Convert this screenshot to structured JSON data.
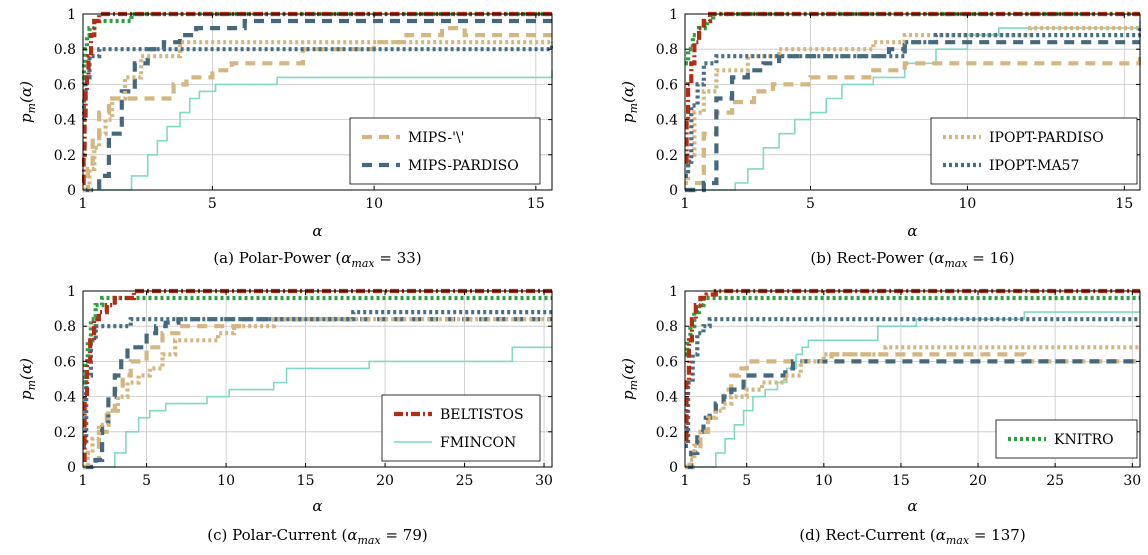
{
  "colors": {
    "BELTISTOS": "#b22d14",
    "KNITRO": "#2ea043",
    "IPOPT-MA57": "#476f84",
    "MIPS-PARDISO": "#46687c",
    "IPOPT-PARDISO": "#d3b680",
    "MIPS-backslash": "#d3b680",
    "FMINCON": "#7fd9c5"
  },
  "chart_data": [
    {
      "id": "a",
      "type": "line",
      "step": true,
      "caption": {
        "prefix": "(a)  Polar-Power (",
        "alpha": "α",
        "sub": "max",
        "suffix": " = 33)"
      },
      "xlabel": "α",
      "ylabel": {
        "main": "p",
        "sub": "m",
        "arg": "(α)"
      },
      "xlim": [
        1,
        15.5
      ],
      "ylim": [
        0,
        1
      ],
      "xticks": [
        1,
        5,
        10,
        15
      ],
      "yticks": [
        0,
        0.2,
        0.4,
        0.6,
        0.8,
        1
      ],
      "grid": true,
      "legend": {
        "position": "bottom-right",
        "entries": [
          "MIPS-'\\'",
          "MIPS-PARDISO"
        ]
      },
      "series": [
        {
          "name": "BELTISTOS",
          "style": "dashdot",
          "x": [
            1.0,
            1.02,
            1.05,
            1.08,
            1.12,
            1.17,
            1.25,
            1.35,
            1.5,
            15.5
          ],
          "y": [
            0.04,
            0.2,
            0.4,
            0.56,
            0.64,
            0.76,
            0.88,
            0.96,
            1.0,
            1.0
          ]
        },
        {
          "name": "KNITRO",
          "style": "dotted",
          "x": [
            1.0,
            1.03,
            1.07,
            1.12,
            1.2,
            1.35,
            2.0,
            2.5,
            15.5
          ],
          "y": [
            0.6,
            0.72,
            0.8,
            0.88,
            0.92,
            0.96,
            0.96,
            1.0,
            1.0
          ]
        },
        {
          "name": "IPOPT-MA57",
          "style": "dotted",
          "x": [
            1.0,
            1.03,
            1.08,
            1.2,
            1.5,
            15.5
          ],
          "y": [
            0.4,
            0.52,
            0.64,
            0.76,
            0.8,
            0.84
          ]
        },
        {
          "name": "IPOPT-PARDISO",
          "style": "dotted",
          "x": [
            1.0,
            1.2,
            1.35,
            1.5,
            1.7,
            1.9,
            2.3,
            2.8,
            4.0,
            7.0,
            10.0,
            14.0,
            15.5
          ],
          "y": [
            0.0,
            0.12,
            0.24,
            0.32,
            0.4,
            0.52,
            0.64,
            0.76,
            0.84,
            0.84,
            0.84,
            0.84,
            0.84
          ]
        },
        {
          "name": "MIPS-'\\'",
          "style": "dashed",
          "x": [
            1.0,
            1.15,
            1.3,
            1.5,
            1.8,
            3.4,
            3.8,
            4.2,
            5.0,
            5.6,
            7.1,
            7.8,
            10.0,
            11.0,
            12.1,
            12.8,
            15.5
          ],
          "y": [
            0.0,
            0.12,
            0.28,
            0.44,
            0.52,
            0.52,
            0.6,
            0.64,
            0.68,
            0.72,
            0.72,
            0.8,
            0.84,
            0.88,
            0.92,
            0.88,
            0.88
          ]
        },
        {
          "name": "MIPS-PARDISO",
          "style": "dashed",
          "x": [
            1.0,
            1.5,
            1.8,
            2.2,
            2.6,
            3.0,
            3.5,
            4.0,
            4.5,
            6.0,
            15.5
          ],
          "y": [
            0.0,
            0.08,
            0.32,
            0.56,
            0.72,
            0.8,
            0.84,
            0.88,
            0.92,
            0.96,
            0.96
          ]
        },
        {
          "name": "FMINCON",
          "style": "solid",
          "x": [
            1.0,
            2.0,
            2.5,
            3.0,
            3.3,
            3.6,
            4.0,
            4.3,
            4.6,
            5.1,
            7.0,
            15.0,
            15.5
          ],
          "y": [
            0.0,
            0.0,
            0.08,
            0.2,
            0.28,
            0.36,
            0.44,
            0.52,
            0.56,
            0.6,
            0.64,
            0.64,
            0.68
          ]
        }
      ]
    },
    {
      "id": "b",
      "type": "line",
      "step": true,
      "caption": {
        "prefix": "(b)  Rect-Power (",
        "alpha": "α",
        "sub": "max",
        "suffix": " = 16)"
      },
      "xlabel": "α",
      "ylabel": {
        "main": "p",
        "sub": "m",
        "arg": "(α)"
      },
      "xlim": [
        1,
        15.5
      ],
      "ylim": [
        0,
        1
      ],
      "xticks": [
        1,
        5,
        10,
        15
      ],
      "yticks": [
        0,
        0.2,
        0.4,
        0.6,
        0.8,
        1
      ],
      "grid": true,
      "legend": {
        "position": "bottom-right",
        "entries": [
          "IPOPT-PARDISO",
          "IPOPT-MA57"
        ]
      },
      "series": [
        {
          "name": "BELTISTOS",
          "style": "dashdot",
          "x": [
            1.0,
            1.05,
            1.1,
            1.2,
            1.3,
            1.45,
            1.6,
            1.8,
            15.5
          ],
          "y": [
            0.16,
            0.4,
            0.6,
            0.72,
            0.84,
            0.92,
            0.96,
            1.0,
            1.0
          ]
        },
        {
          "name": "KNITRO",
          "style": "dotted",
          "x": [
            1.0,
            1.1,
            1.25,
            1.45,
            1.7,
            1.9,
            15.5
          ],
          "y": [
            0.72,
            0.8,
            0.88,
            0.92,
            0.96,
            1.0,
            1.0
          ]
        },
        {
          "name": "IPOPT-MA57",
          "style": "dotted",
          "x": [
            1.0,
            1.1,
            1.2,
            1.4,
            1.6,
            2.0,
            2.5,
            8.0,
            9.0,
            10.0,
            15.5
          ],
          "y": [
            0.08,
            0.16,
            0.48,
            0.6,
            0.72,
            0.76,
            0.76,
            0.84,
            0.88,
            0.88,
            0.92
          ]
        },
        {
          "name": "IPOPT-PARDISO",
          "style": "dotted",
          "x": [
            1.0,
            1.1,
            1.3,
            1.6,
            2.0,
            3.0,
            4.0,
            6.0,
            7.0,
            8.0,
            10.0,
            12.0,
            15.5
          ],
          "y": [
            0.04,
            0.2,
            0.44,
            0.56,
            0.68,
            0.76,
            0.8,
            0.8,
            0.84,
            0.88,
            0.88,
            0.92,
            0.92
          ]
        },
        {
          "name": "MIPS-'\\'",
          "style": "dashed",
          "x": [
            1.0,
            1.3,
            1.6,
            2.0,
            2.5,
            3.2,
            3.8,
            4.2,
            5.0,
            6.0,
            7.0,
            8.0,
            10.0,
            15.0,
            15.5
          ],
          "y": [
            0.0,
            0.04,
            0.32,
            0.44,
            0.5,
            0.56,
            0.6,
            0.6,
            0.64,
            0.64,
            0.68,
            0.72,
            0.72,
            0.72,
            0.76
          ]
        },
        {
          "name": "MIPS-PARDISO",
          "style": "dashed",
          "x": [
            1.0,
            1.6,
            2.0,
            2.5,
            3.0,
            3.5,
            4.0,
            5.0,
            7.0,
            7.5,
            8.0,
            15.5
          ],
          "y": [
            0.0,
            0.04,
            0.52,
            0.64,
            0.68,
            0.72,
            0.76,
            0.76,
            0.76,
            0.8,
            0.84,
            0.84
          ]
        },
        {
          "name": "FMINCON",
          "style": "solid",
          "x": [
            1.0,
            2.0,
            2.6,
            3.0,
            3.5,
            4.0,
            4.5,
            5.0,
            5.5,
            6.0,
            7.0,
            8.0,
            9.0,
            10.0,
            11.0,
            15.5
          ],
          "y": [
            0.0,
            0.0,
            0.04,
            0.12,
            0.24,
            0.32,
            0.4,
            0.44,
            0.52,
            0.6,
            0.64,
            0.72,
            0.8,
            0.88,
            0.92,
            0.96
          ]
        }
      ]
    },
    {
      "id": "c",
      "type": "line",
      "step": true,
      "caption": {
        "prefix": "(c)  Polar-Current (",
        "alpha": "α",
        "sub": "max",
        "suffix": " = 79)"
      },
      "xlabel": "α",
      "ylabel": {
        "main": "p",
        "sub": "m",
        "arg": "(α)"
      },
      "xlim": [
        1,
        30.5
      ],
      "ylim": [
        0,
        1
      ],
      "xticks": [
        1,
        5,
        10,
        15,
        20,
        25,
        30
      ],
      "yticks": [
        0,
        0.2,
        0.4,
        0.6,
        0.8,
        1
      ],
      "grid": true,
      "legend": {
        "position": "bottom-right",
        "entries": [
          "BELTISTOS",
          "FMINCON"
        ]
      },
      "series": [
        {
          "name": "BELTISTOS",
          "style": "dashdot",
          "x": [
            1.0,
            1.1,
            1.25,
            1.45,
            1.7,
            2.0,
            2.5,
            3.0,
            3.6,
            4.2,
            30.5
          ],
          "y": [
            0.04,
            0.4,
            0.6,
            0.72,
            0.84,
            0.88,
            0.92,
            0.96,
            0.96,
            1.0,
            1.0
          ]
        },
        {
          "name": "KNITRO",
          "style": "dotted",
          "x": [
            1.0,
            1.15,
            1.3,
            1.5,
            1.8,
            2.2,
            30.5
          ],
          "y": [
            0.48,
            0.6,
            0.72,
            0.84,
            0.92,
            0.96,
            0.96
          ]
        },
        {
          "name": "IPOPT-MA57",
          "style": "dotted",
          "x": [
            1.0,
            1.2,
            1.5,
            1.8,
            2.2,
            3.5,
            4.0,
            6.0,
            12.0,
            17.0,
            18.0,
            30.5
          ],
          "y": [
            0.12,
            0.52,
            0.72,
            0.8,
            0.8,
            0.8,
            0.84,
            0.84,
            0.84,
            0.84,
            0.88,
            0.88
          ]
        },
        {
          "name": "IPOPT-PARDISO",
          "style": "dotted",
          "x": [
            1.0,
            1.3,
            1.6,
            2.0,
            2.6,
            3.2,
            3.8,
            4.5,
            5.2,
            6.0,
            6.8,
            8.5,
            9.5,
            10.5,
            12.0,
            13.0,
            30.5
          ],
          "y": [
            0.0,
            0.08,
            0.16,
            0.24,
            0.32,
            0.4,
            0.48,
            0.52,
            0.56,
            0.64,
            0.72,
            0.72,
            0.76,
            0.8,
            0.8,
            0.84,
            0.84
          ]
        },
        {
          "name": "MIPS-'\\'",
          "style": "dashed",
          "x": [
            1.0,
            1.6,
            2.0,
            2.5,
            3.0,
            3.5,
            4.0,
            5.0,
            6.0,
            7.0,
            7.8,
            8.5,
            9.0,
            10.0,
            11.0,
            12.5,
            30.5
          ],
          "y": [
            0.0,
            0.04,
            0.2,
            0.32,
            0.44,
            0.52,
            0.6,
            0.68,
            0.76,
            0.8,
            0.8,
            0.8,
            0.8,
            0.8,
            0.84,
            0.84,
            0.84
          ]
        },
        {
          "name": "MIPS-PARDISO",
          "style": "dashed",
          "x": [
            1.0,
            1.8,
            2.2,
            2.6,
            3.0,
            3.4,
            3.8,
            4.5,
            5.0,
            5.6,
            6.2,
            7.0,
            30.5
          ],
          "y": [
            0.0,
            0.04,
            0.24,
            0.4,
            0.52,
            0.6,
            0.68,
            0.68,
            0.76,
            0.8,
            0.82,
            0.84,
            0.84
          ]
        },
        {
          "name": "FMINCON",
          "style": "solid",
          "x": [
            1.0,
            2.5,
            3.0,
            3.7,
            4.5,
            5.2,
            6.2,
            8.0,
            8.8,
            9.8,
            10.2,
            12.0,
            13.0,
            13.8,
            18.0,
            19.0,
            26.0,
            28.0,
            30.5
          ],
          "y": [
            0.0,
            0.0,
            0.08,
            0.2,
            0.28,
            0.32,
            0.36,
            0.36,
            0.4,
            0.4,
            0.44,
            0.44,
            0.48,
            0.56,
            0.56,
            0.6,
            0.6,
            0.68,
            0.68
          ]
        }
      ]
    },
    {
      "id": "d",
      "type": "line",
      "step": true,
      "caption": {
        "prefix": "(d)  Rect-Current (",
        "alpha": "α",
        "sub": "max",
        "suffix": " = 137)"
      },
      "xlabel": "α",
      "ylabel": {
        "main": "p",
        "sub": "m",
        "arg": "(α)"
      },
      "xlim": [
        1,
        30.5
      ],
      "ylim": [
        0,
        1
      ],
      "xticks": [
        1,
        5,
        10,
        15,
        20,
        25,
        30
      ],
      "yticks": [
        0,
        0.2,
        0.4,
        0.6,
        0.8,
        1
      ],
      "grid": true,
      "legend": {
        "position": "bottom-right",
        "entries": [
          "KNITRO"
        ]
      },
      "series": [
        {
          "name": "BELTISTOS",
          "style": "dashdot",
          "x": [
            1.0,
            1.1,
            1.25,
            1.45,
            1.7,
            2.0,
            2.4,
            3.0,
            30.5
          ],
          "y": [
            0.16,
            0.48,
            0.72,
            0.84,
            0.92,
            0.96,
            0.98,
            1.0,
            1.0
          ]
        },
        {
          "name": "KNITRO",
          "style": "dotted",
          "x": [
            1.0,
            1.15,
            1.35,
            1.6,
            1.9,
            2.2,
            30.5
          ],
          "y": [
            0.64,
            0.72,
            0.8,
            0.88,
            0.92,
            0.96,
            0.96
          ]
        },
        {
          "name": "IPOPT-MA57",
          "style": "dotted",
          "x": [
            1.0,
            1.2,
            1.5,
            1.8,
            2.2,
            2.6,
            3.0,
            30.5
          ],
          "y": [
            0.12,
            0.48,
            0.64,
            0.76,
            0.8,
            0.84,
            0.84,
            0.84
          ]
        },
        {
          "name": "IPOPT-PARDISO",
          "style": "dotted",
          "x": [
            1.0,
            1.3,
            1.6,
            2.0,
            2.5,
            3.0,
            3.5,
            4.0,
            5.0,
            6.0,
            7.5,
            8.5,
            10.0,
            12.0,
            14.0,
            15.5,
            30.5
          ],
          "y": [
            0.0,
            0.04,
            0.12,
            0.2,
            0.28,
            0.32,
            0.36,
            0.4,
            0.44,
            0.48,
            0.52,
            0.6,
            0.64,
            0.64,
            0.68,
            0.68,
            0.68
          ]
        },
        {
          "name": "MIPS-'\\'",
          "style": "dashed",
          "x": [
            1.0,
            1.5,
            2.0,
            2.5,
            3.0,
            3.5,
            4.0,
            4.5,
            5.0,
            9.0,
            10.5,
            12.0,
            22.0,
            23.0,
            30.5
          ],
          "y": [
            0.0,
            0.08,
            0.2,
            0.28,
            0.36,
            0.44,
            0.52,
            0.56,
            0.6,
            0.6,
            0.64,
            0.64,
            0.64,
            0.6,
            0.6
          ]
        },
        {
          "name": "MIPS-PARDISO",
          "style": "dashed",
          "x": [
            1.0,
            1.4,
            1.8,
            2.2,
            2.6,
            3.0,
            3.5,
            4.0,
            4.8,
            6.0,
            7.0,
            7.5,
            8.0,
            8.5,
            30.5
          ],
          "y": [
            0.0,
            0.08,
            0.2,
            0.28,
            0.32,
            0.36,
            0.4,
            0.44,
            0.52,
            0.52,
            0.52,
            0.56,
            0.6,
            0.6,
            0.6
          ]
        },
        {
          "name": "FMINCON",
          "style": "solid",
          "x": [
            1.0,
            2.5,
            3.0,
            3.6,
            4.2,
            4.8,
            5.4,
            6.2,
            7.0,
            7.6,
            8.2,
            8.6,
            9.0,
            13.0,
            13.5,
            15.5,
            16.0,
            22.0,
            23.0,
            30.5
          ],
          "y": [
            0.0,
            0.0,
            0.08,
            0.16,
            0.24,
            0.32,
            0.4,
            0.44,
            0.48,
            0.56,
            0.64,
            0.68,
            0.72,
            0.72,
            0.8,
            0.8,
            0.84,
            0.84,
            0.88,
            0.88
          ]
        }
      ]
    }
  ]
}
